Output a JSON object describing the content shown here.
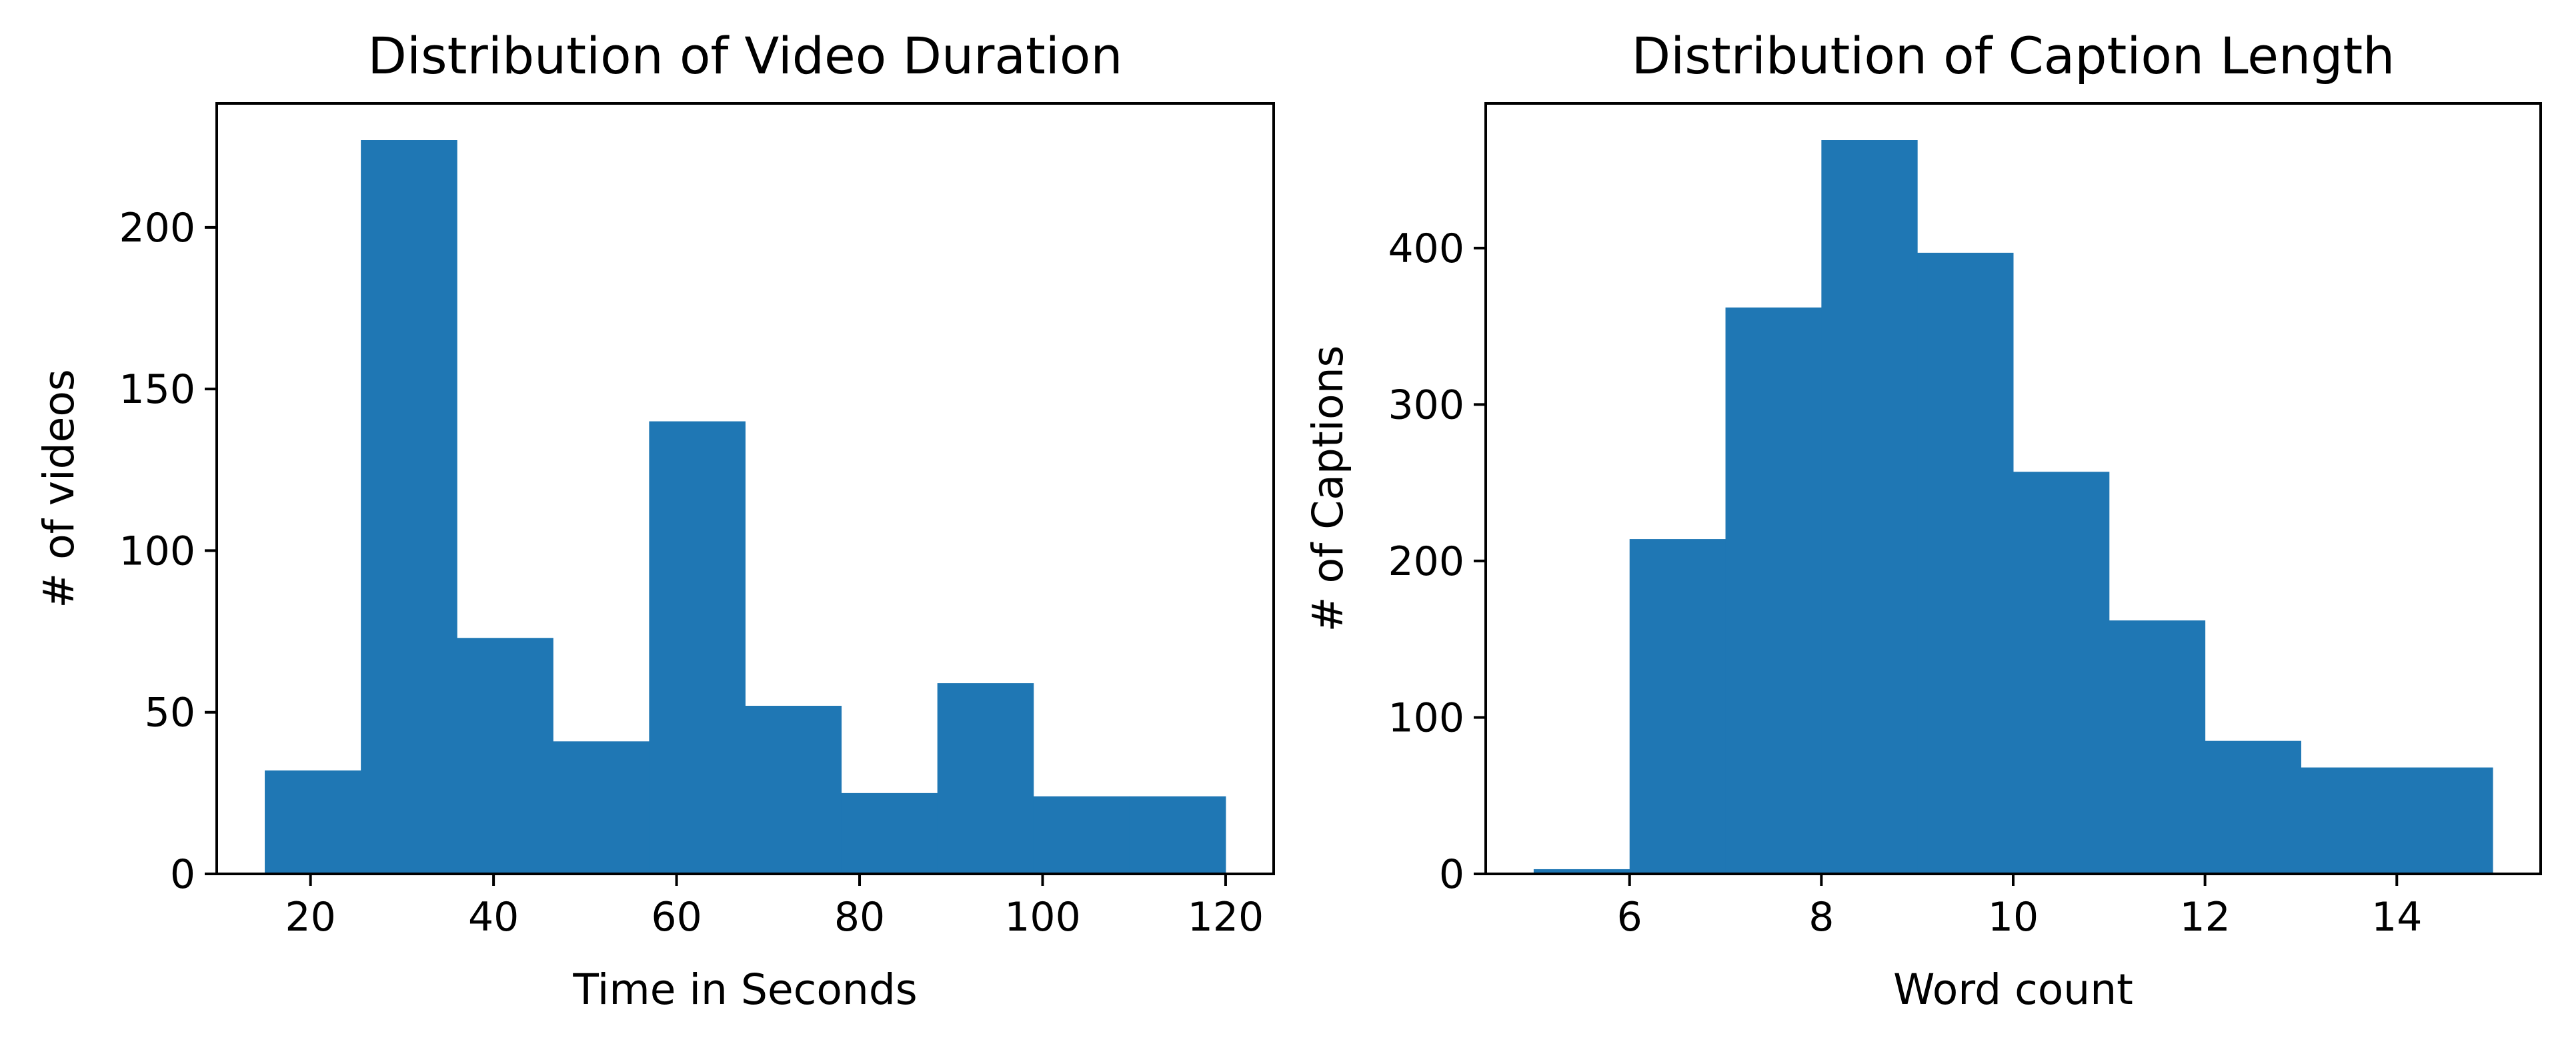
{
  "chart_data": [
    {
      "type": "bar",
      "title": "Distribution of Video Duration",
      "xlabel": "Time in Seconds",
      "ylabel": "# of videos",
      "bin_edges": [
        15,
        25.5,
        36,
        46.5,
        57,
        67.5,
        78,
        88.5,
        99,
        109.5,
        120
      ],
      "values": [
        32,
        227,
        73,
        41,
        140,
        52,
        25,
        59,
        24,
        24
      ],
      "xlim": [
        9.75,
        125.25
      ],
      "ylim": [
        0,
        238.35
      ],
      "xticks": [
        20,
        40,
        60,
        80,
        100,
        120
      ],
      "yticks": [
        0,
        50,
        100,
        150,
        200
      ],
      "color": "#1f77b4",
      "grid": false
    },
    {
      "type": "bar",
      "title": "Distribution of Caption Length",
      "xlabel": "Word count",
      "ylabel": "# of Captions",
      "bin_edges": [
        5,
        6,
        7,
        8,
        9,
        10,
        11,
        12,
        13,
        14,
        15
      ],
      "values": [
        3,
        214,
        362,
        469,
        397,
        257,
        162,
        85,
        68,
        68
      ],
      "xlim": [
        4.5,
        15.5
      ],
      "ylim": [
        0,
        492.45
      ],
      "xticks": [
        6,
        8,
        10,
        12,
        14
      ],
      "yticks": [
        0,
        100,
        200,
        300,
        400
      ],
      "color": "#1f77b4",
      "grid": false
    }
  ]
}
